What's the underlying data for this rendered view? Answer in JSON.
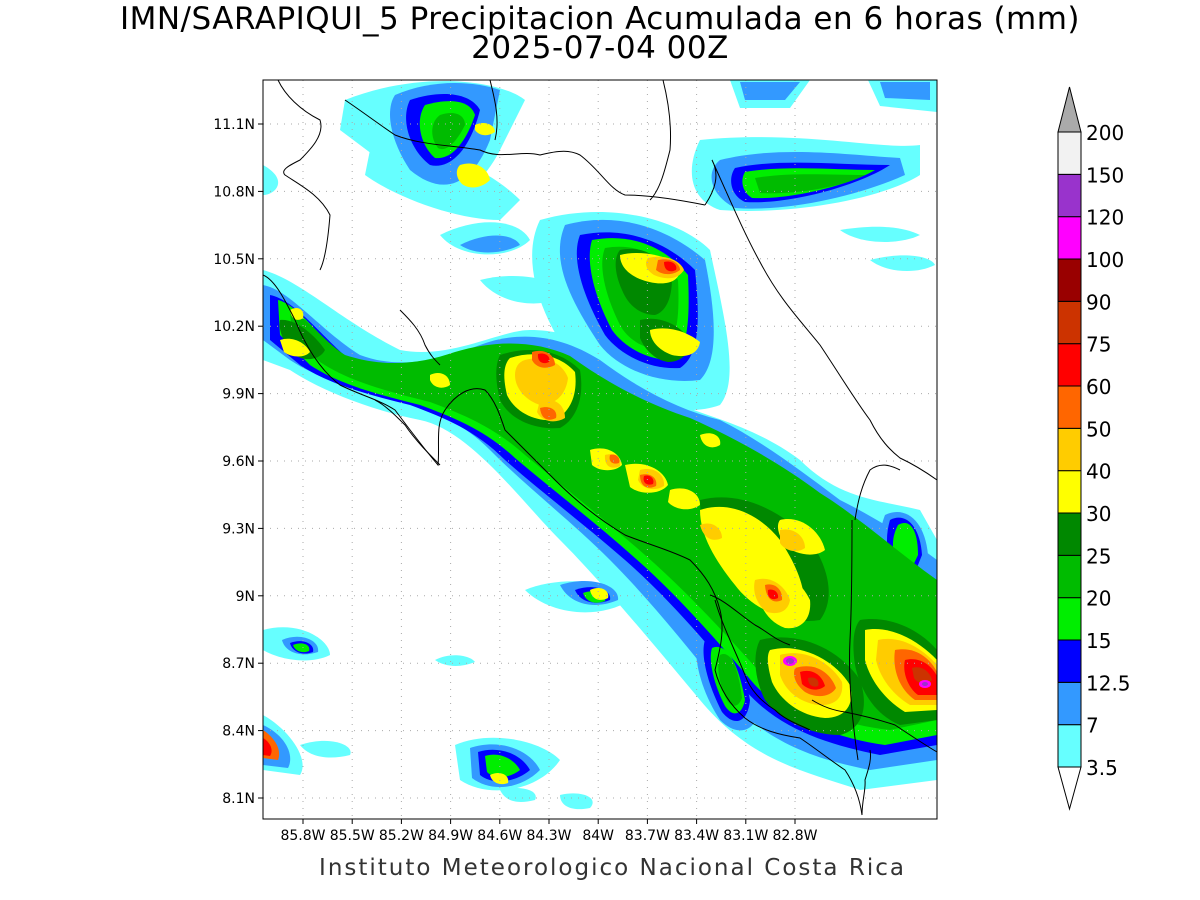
{
  "title": {
    "line1": "IMN/SARAPIQUI_5 Precipitacion Acumulada en 6 horas (mm)",
    "line2": "2025-07-04 00Z"
  },
  "credit": "Instituto Meteorologico Nacional Costa Rica",
  "map": {
    "lat_ticks": [
      "11.1N",
      "10.8N",
      "10.5N",
      "10.2N",
      "9.9N",
      "9.6N",
      "9.3N",
      "9N",
      "8.7N",
      "8.4N",
      "8.1N"
    ],
    "lon_ticks": [
      "85.8W",
      "85.5W",
      "85.2W",
      "84.9W",
      "84.6W",
      "84.3W",
      "84W",
      "83.7W",
      "83.4W",
      "83.1W",
      "82.8W"
    ]
  },
  "colorbar": {
    "levels": [
      "3.5",
      "7",
      "12.5",
      "15",
      "20",
      "25",
      "30",
      "40",
      "50",
      "60",
      "75",
      "90",
      "100",
      "120",
      "150",
      "200"
    ],
    "colors": [
      "#66ffff",
      "#3399ff",
      "#0000ff",
      "#00ee00",
      "#00bb00",
      "#008800",
      "#ffff00",
      "#ffcc00",
      "#ff6600",
      "#ff0000",
      "#cc3300",
      "#990000",
      "#ff00ff",
      "#9933cc",
      "#f2f2f2",
      "#aaaaaa"
    ]
  }
}
